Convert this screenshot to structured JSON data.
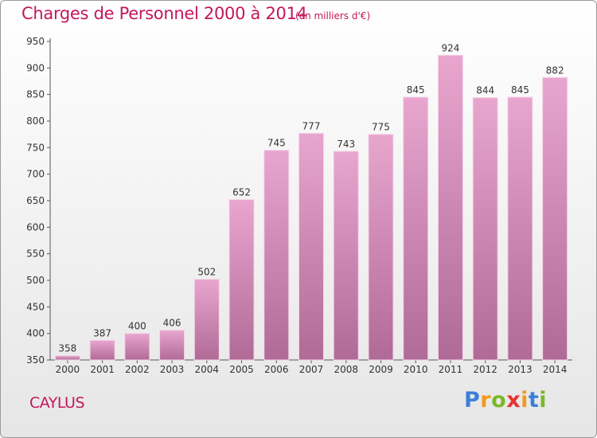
{
  "header": {
    "title": "Charges de Personnel 2000 à 2014",
    "subtitle": "(en milliers d'€)"
  },
  "footer": {
    "place": "CAYLUS",
    "logo_letters": [
      {
        "char": "P",
        "color": "#3c7fd6"
      },
      {
        "char": "r",
        "color": "#f39a1e"
      },
      {
        "char": "o",
        "color": "#79b928"
      },
      {
        "char": "x",
        "color": "#e8322d"
      },
      {
        "char": "i",
        "color": "#f39a1e"
      },
      {
        "char": "t",
        "color": "#3c7fd6"
      },
      {
        "char": "i",
        "color": "#79b928"
      }
    ]
  },
  "colors": {
    "accent": "#c2185b",
    "bar_top": "#e8a6cf",
    "bar_bottom": "#b06a96",
    "bar_edge": "#f4d3e6"
  },
  "chart_data": {
    "type": "bar",
    "categories": [
      "2000",
      "2001",
      "2002",
      "2003",
      "2004",
      "2005",
      "2006",
      "2007",
      "2008",
      "2009",
      "2010",
      "2011",
      "2012",
      "2013",
      "2014"
    ],
    "values": [
      358,
      387,
      400,
      406,
      502,
      652,
      745,
      777,
      743,
      775,
      845,
      924,
      844,
      845,
      882
    ],
    "ylim": [
      350,
      950
    ],
    "yticks": [
      350,
      400,
      450,
      500,
      550,
      600,
      650,
      700,
      750,
      800,
      850,
      900,
      950
    ],
    "grid": false,
    "legend": "none"
  }
}
